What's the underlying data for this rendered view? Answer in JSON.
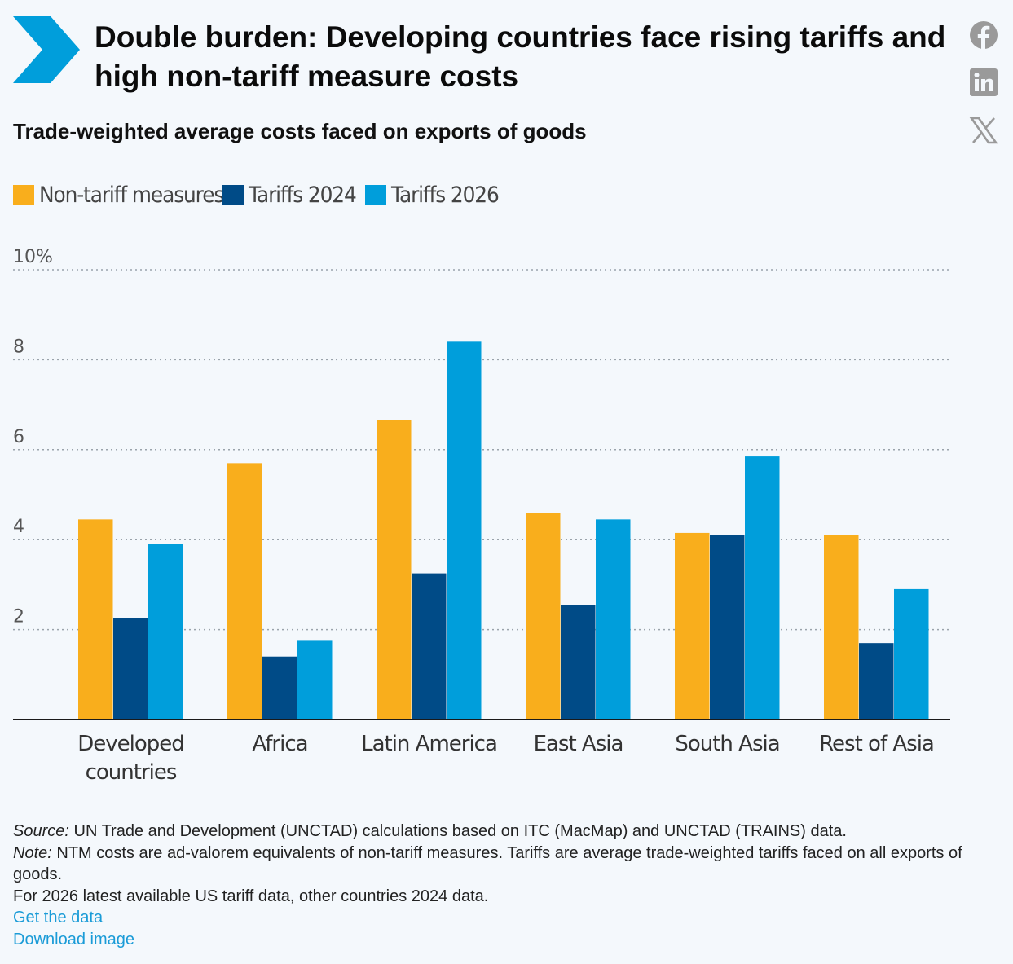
{
  "header": {
    "title": "Double burden: Developing countries face rising tariffs and high non-tariff measure costs",
    "subtitle": "Trade-weighted average costs faced on exports of goods"
  },
  "social": [
    {
      "name": "facebook-icon"
    },
    {
      "name": "linkedin-icon"
    },
    {
      "name": "x-icon"
    }
  ],
  "colors": {
    "ntm": "#f9ae1c",
    "tariffs_2024": "#004b87",
    "tariffs_2026": "#009edb",
    "logo": "#009edb",
    "link": "#1a9bd7"
  },
  "chart_data": {
    "type": "bar",
    "categories": [
      "Developed countries",
      "Africa",
      "Latin America",
      "East Asia",
      "South Asia",
      "Rest of Asia"
    ],
    "category_lines": [
      [
        "Developed",
        "countries"
      ],
      [
        "Africa"
      ],
      [
        "Latin America"
      ],
      [
        "East Asia"
      ],
      [
        "South Asia"
      ],
      [
        "Rest of Asia"
      ]
    ],
    "series": [
      {
        "name": "Non-tariff measures",
        "values": [
          4.45,
          5.7,
          6.65,
          4.6,
          4.15,
          4.1
        ]
      },
      {
        "name": "Tariffs 2024",
        "values": [
          2.25,
          1.4,
          3.25,
          2.55,
          4.1,
          1.7
        ]
      },
      {
        "name": "Tariffs 2026",
        "values": [
          3.9,
          1.75,
          8.4,
          4.45,
          5.85,
          2.9
        ]
      }
    ],
    "yticks": [
      "10%",
      "8",
      "6",
      "4",
      "2"
    ],
    "ytick_values": [
      10,
      8,
      6,
      4,
      2
    ],
    "ylim": [
      0,
      10
    ],
    "grid": true,
    "legend": "top-left"
  },
  "footer": {
    "source_label": "Source:",
    "source_text": " UN Trade and Development (UNCTAD) calculations based on ITC (MacMap) and UNCTAD (TRAINS) data.",
    "note_label": "Note:",
    "note_text": " NTM costs are ad-valorem equivalents of non-tariff measures. Tariffs are average trade-weighted tariffs faced on all exports of goods.",
    "extra_text": "For 2026 latest available US tariff data, other countries 2024 data.",
    "get_data": "Get the data",
    "download_image": "Download image"
  }
}
